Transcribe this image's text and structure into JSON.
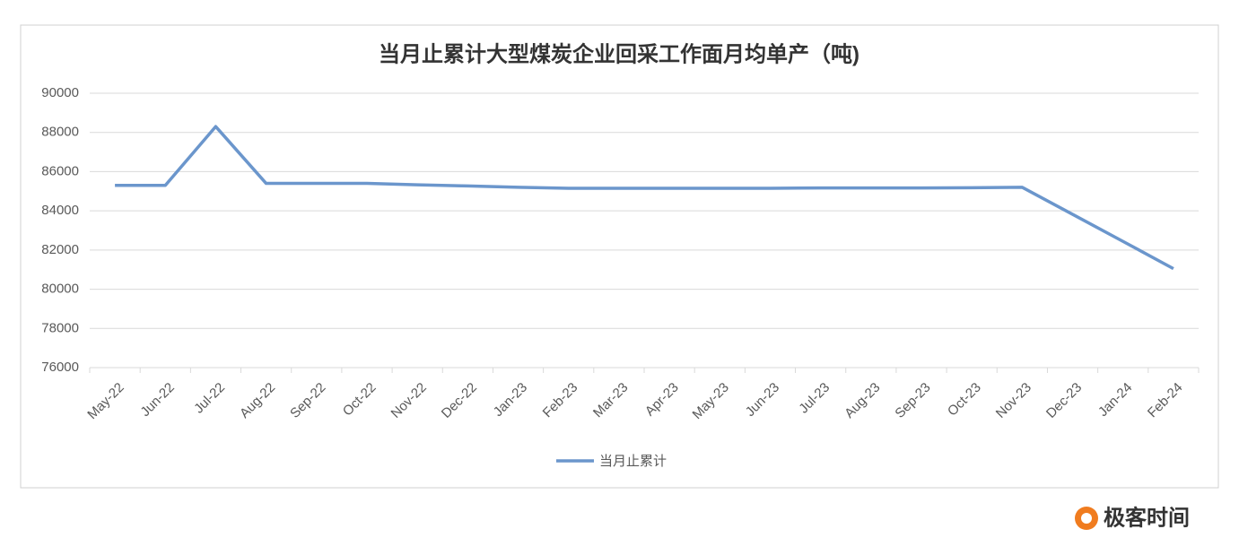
{
  "chart_data": {
    "type": "line",
    "title": "当月止累计大型煤炭企业回采工作面月均单产（吨)",
    "categories": [
      "May-22",
      "Jun-22",
      "Jul-22",
      "Aug-22",
      "Sep-22",
      "Oct-22",
      "Nov-22",
      "Dec-22",
      "Jan-23",
      "Feb-23",
      "Mar-23",
      "Apr-23",
      "May-23",
      "Jun-23",
      "Jul-23",
      "Aug-23",
      "Sep-23",
      "Oct-23",
      "Nov-23",
      "Dec-23",
      "Jan-24",
      "Feb-24"
    ],
    "series": [
      {
        "name": "当月止累计",
        "color": "#6b96cc",
        "values": [
          85300,
          85300,
          88300,
          85400,
          85400,
          85400,
          85330,
          85270,
          85200,
          85150,
          85150,
          85150,
          85150,
          85150,
          85170,
          85170,
          85170,
          85180,
          85200,
          83820,
          82440,
          81050
        ]
      }
    ],
    "ylim": [
      76000,
      90000
    ],
    "yticks": [
      76000,
      78000,
      80000,
      82000,
      84000,
      86000,
      88000,
      90000
    ],
    "grid": true,
    "legend": "bottom"
  },
  "watermark": "极客时间"
}
